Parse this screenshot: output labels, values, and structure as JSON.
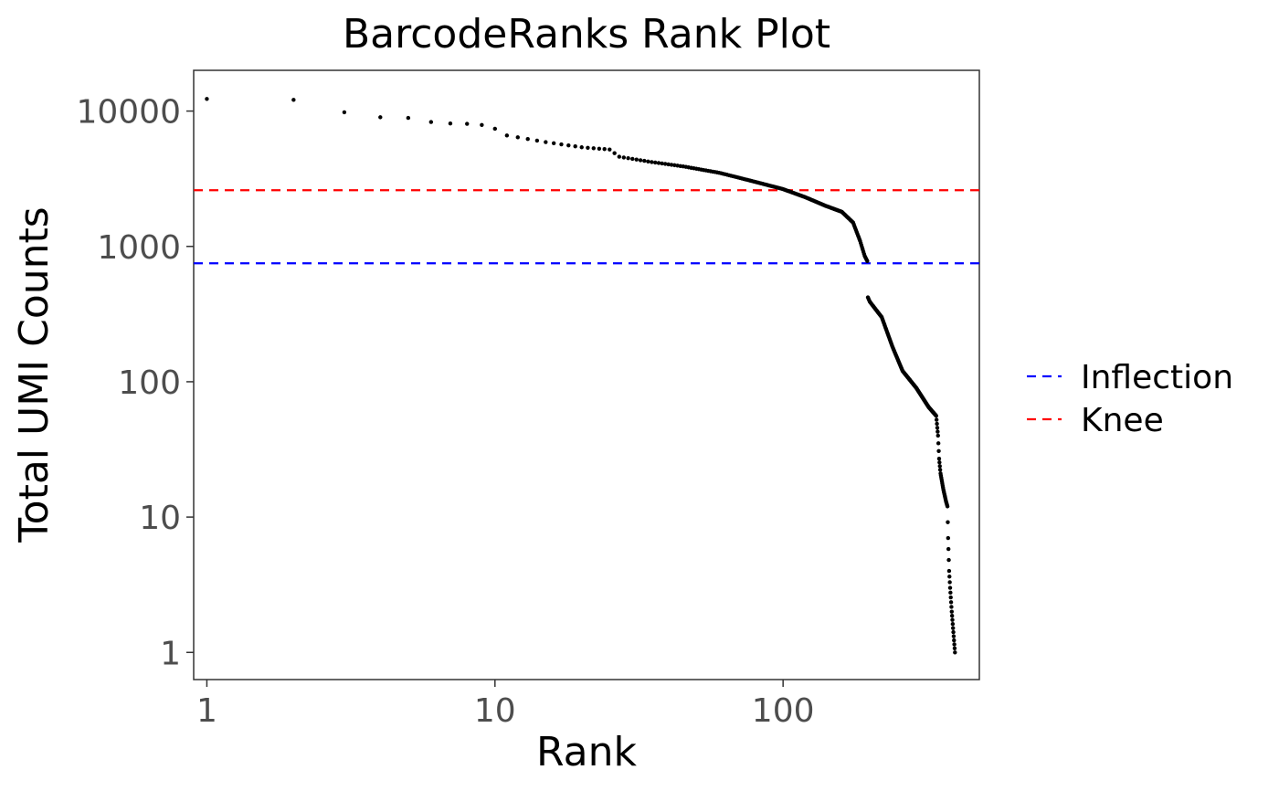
{
  "chart_data": {
    "type": "scatter",
    "title": "BarcodeRanks Rank Plot",
    "xlabel": "Rank",
    "ylabel": "Total UMI Counts",
    "x_scale": "log10",
    "y_scale": "log10",
    "xlim": [
      0.9,
      480
    ],
    "ylim": [
      0.63,
      20000
    ],
    "x_ticks": [
      {
        "value": 1,
        "label": "1"
      },
      {
        "value": 10,
        "label": "10"
      },
      {
        "value": 100,
        "label": "100"
      }
    ],
    "y_ticks": [
      {
        "value": 1,
        "label": "1"
      },
      {
        "value": 10,
        "label": "10"
      },
      {
        "value": 100,
        "label": "100"
      },
      {
        "value": 1000,
        "label": "1000"
      },
      {
        "value": 10000,
        "label": "10000"
      }
    ],
    "grid": false,
    "legend_position": "right",
    "hlines": [
      {
        "name": "Inflection",
        "y": 750,
        "color": "#0000ff",
        "style": "dashed"
      },
      {
        "name": "Knee",
        "y": 2600,
        "color": "#ff0000",
        "style": "dashed"
      }
    ],
    "point_color": "#000000",
    "anchors": [
      [
        1,
        12300
      ],
      [
        2,
        12100
      ],
      [
        3,
        9800
      ],
      [
        4,
        9000
      ],
      [
        5,
        8900
      ],
      [
        6,
        8300
      ],
      [
        7,
        8100
      ],
      [
        8,
        8050
      ],
      [
        9,
        7900
      ],
      [
        10,
        7400
      ],
      [
        11,
        6600
      ],
      [
        15,
        5900
      ],
      [
        20,
        5400
      ],
      [
        25,
        5200
      ],
      [
        27,
        4600
      ],
      [
        35,
        4200
      ],
      [
        45,
        3900
      ],
      [
        60,
        3500
      ],
      [
        80,
        3000
      ],
      [
        100,
        2650
      ],
      [
        120,
        2300
      ],
      [
        140,
        2000
      ],
      [
        160,
        1800
      ],
      [
        175,
        1500
      ],
      [
        185,
        1100
      ],
      [
        192,
        850
      ],
      [
        196,
        780
      ],
      [
        197,
        420
      ],
      [
        200,
        390
      ],
      [
        220,
        300
      ],
      [
        240,
        180
      ],
      [
        260,
        120
      ],
      [
        290,
        90
      ],
      [
        320,
        65
      ],
      [
        340,
        56
      ],
      [
        345,
        40
      ],
      [
        348,
        27
      ],
      [
        352,
        21
      ],
      [
        360,
        16
      ],
      [
        368,
        13
      ],
      [
        372,
        12
      ],
      [
        374,
        7
      ],
      [
        377,
        4
      ],
      [
        380,
        3
      ],
      [
        385,
        2
      ],
      [
        395,
        1
      ]
    ]
  }
}
